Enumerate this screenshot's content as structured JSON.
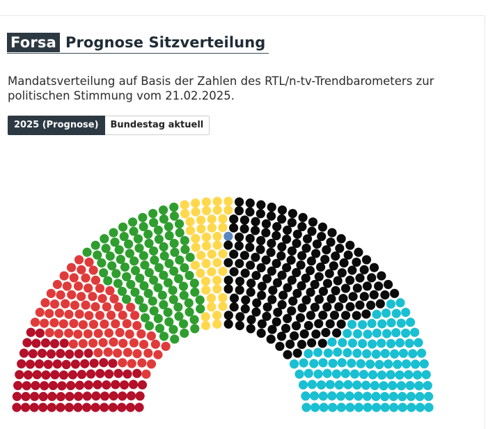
{
  "header": {
    "brand": "Forsa",
    "title": "Prognose Sitzverteilung"
  },
  "description": "Mandatsverteilung auf Basis der Zahlen des RTL/n-tv-Trendbarometers zur politischen Stimmung vom 21.02.2025.",
  "tabs": [
    {
      "label": "2025 (Prognose)",
      "active": true
    },
    {
      "label": "Bundestag aktuell",
      "active": false
    }
  ],
  "chart_data": {
    "type": "parliament",
    "seats_total": 630,
    "parties": [
      {
        "color": "#b3102a",
        "seats": 85
      },
      {
        "color": "#e03b3b",
        "seats": 85
      },
      {
        "color": "#2f9e2f",
        "seats": 105
      },
      {
        "color": "#ffd84d",
        "seats": 45
      },
      {
        "color": "#5a86c0",
        "seats": 1
      },
      {
        "color": "#0b0b0b",
        "seats": 190
      },
      {
        "color": "#1bbfd2",
        "seats": 119
      }
    ]
  }
}
